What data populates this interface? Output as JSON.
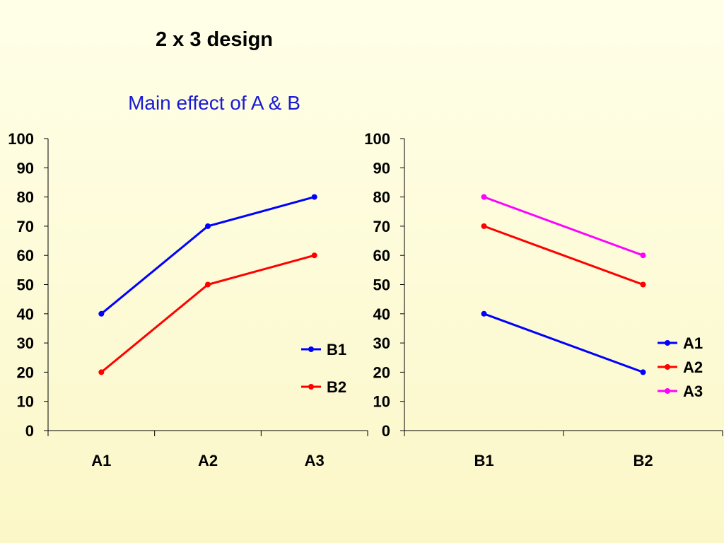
{
  "title": "2 x 3 design",
  "subtitle": "Main effect of A & B",
  "chart_data": [
    {
      "type": "line",
      "categories": [
        "A1",
        "A2",
        "A3"
      ],
      "series": [
        {
          "name": "B1",
          "values": [
            40,
            70,
            80
          ],
          "color": "#0000ff"
        },
        {
          "name": "B2",
          "values": [
            20,
            50,
            60
          ],
          "color": "#ff0000"
        }
      ],
      "ylim": [
        0,
        100
      ],
      "yticks": [
        0,
        10,
        20,
        30,
        40,
        50,
        60,
        70,
        80,
        90,
        100
      ],
      "grid": false,
      "legend": "right"
    },
    {
      "type": "line",
      "categories": [
        "B1",
        "B2"
      ],
      "series": [
        {
          "name": "A1",
          "values": [
            40,
            20
          ],
          "color": "#0000ff"
        },
        {
          "name": "A2",
          "values": [
            70,
            50
          ],
          "color": "#ff0000"
        },
        {
          "name": "A3",
          "values": [
            80,
            60
          ],
          "color": "#ff00ff"
        }
      ],
      "ylim": [
        0,
        100
      ],
      "yticks": [
        0,
        10,
        20,
        30,
        40,
        50,
        60,
        70,
        80,
        90,
        100
      ],
      "grid": false,
      "legend": "right"
    }
  ]
}
